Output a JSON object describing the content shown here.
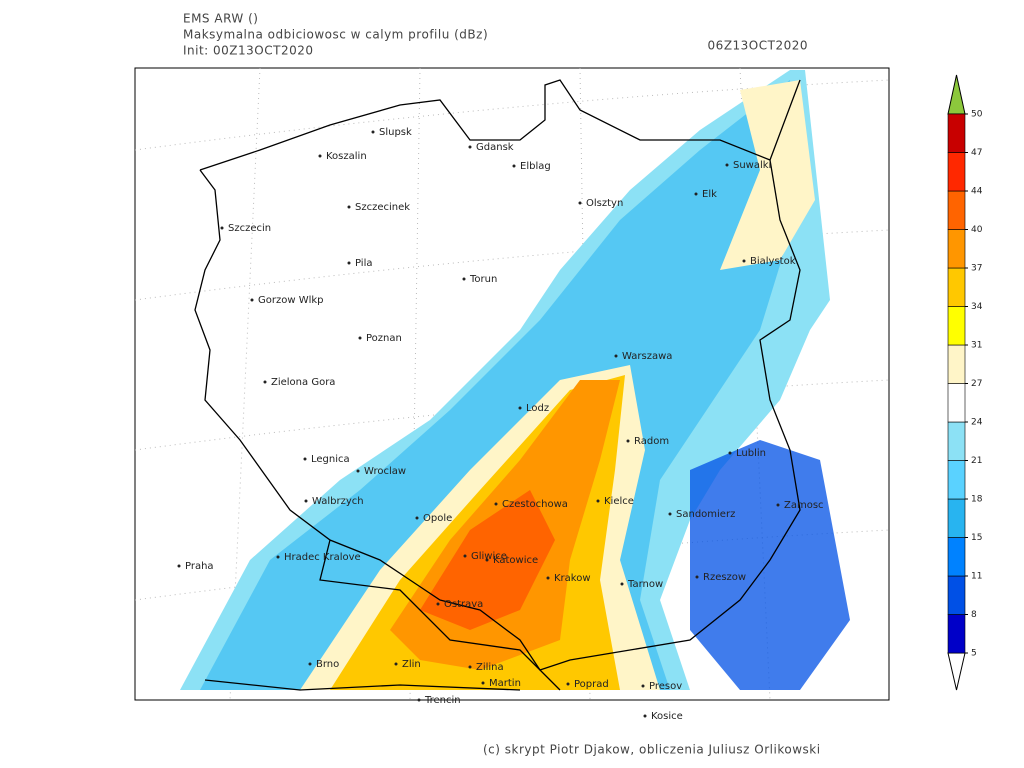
{
  "header": {
    "model": "EMS ARW ()",
    "title": "Maksymalna odbiciowosc w calym profilu (dBz)",
    "init": "Init: 00Z13OCT2020",
    "valid": "06Z13OCT2020"
  },
  "cities": [
    "Slupsk",
    "Gdansk",
    "Koszalin",
    "Elblag",
    "Suwalki",
    "Szczecinek",
    "Olsztyn",
    "Elk",
    "Szczecin",
    "Pila",
    "Torun",
    "Bialystok",
    "Gorzow Wlkp",
    "Poznan",
    "Warszawa",
    "Zielona Gora",
    "Lodz",
    "Radom",
    "Legnica",
    "Lublin",
    "Wroclaw",
    "Walbrzych",
    "Czestochowa",
    "Kielce",
    "Opole",
    "Sandomierz",
    "Zamosc",
    "Hradec Kralove",
    "Praha",
    "Gliwice",
    "Katowice",
    "Krakow",
    "Tarnow",
    "Rzeszow",
    "Ostrava",
    "Brno",
    "Zlin",
    "Zilina",
    "Martin",
    "Poprad",
    "Presov",
    "Trencin",
    "Kosice"
  ],
  "colorbar": {
    "levels": [
      5,
      8,
      11,
      15,
      18,
      21,
      24,
      27,
      31,
      34,
      37,
      40,
      44,
      47,
      50
    ],
    "colors": [
      "#0000c8",
      "#0050e6",
      "#0082ff",
      "#28b4f0",
      "#5ad2ff",
      "#8ce1f5",
      "#ffffff",
      "#fff5c8",
      "#ffff00",
      "#ffc800",
      "#ff9600",
      "#ff6400",
      "#ff2800",
      "#c80000"
    ],
    "over_color": "#8cc83c",
    "under_color": "#ffffff"
  },
  "footer": "(c) skrypt Piotr Djakow, obliczenia Juliusz Orlikowski"
}
